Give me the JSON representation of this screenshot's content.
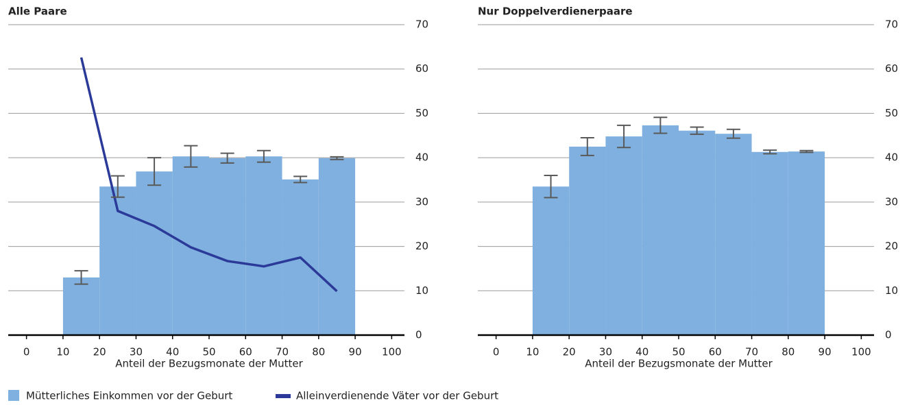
{
  "chart_data": [
    {
      "type": "histogram",
      "title": "Alle Paare",
      "xlabel": "Anteil der Bezugsmonate der Mutter",
      "bins": [
        10,
        20,
        30,
        40,
        50,
        60,
        70,
        80,
        90
      ],
      "series": [
        {
          "name": "Mütterliches Einkommen vor der Geburt",
          "color": "#7fb0df",
          "error_color": "#595959",
          "values": [
            13,
            33.5,
            36.9,
            40.3,
            39.9,
            40.3,
            35.1,
            39.9
          ],
          "errors": [
            1.5,
            2.4,
            3.1,
            2.4,
            1.1,
            1.3,
            0.7,
            0.3
          ]
        },
        {
          "name": "Alleinverdienende Väter vor der Geburt",
          "type": "line",
          "color": "#2b3a98",
          "x": [
            15,
            25,
            35,
            45,
            55,
            65,
            75,
            85
          ],
          "values": [
            62.6,
            28,
            24.6,
            19.8,
            16.7,
            15.5,
            17.5,
            9.9
          ]
        }
      ],
      "xlim": [
        -5,
        105
      ],
      "ylim": [
        0,
        70
      ],
      "xticks": [
        0,
        10,
        20,
        30,
        40,
        50,
        60,
        70,
        80,
        90,
        100
      ],
      "yticks": [
        0,
        10,
        20,
        30,
        40,
        50,
        60,
        70
      ],
      "grid": true,
      "legend": "bottom"
    },
    {
      "type": "histogram",
      "title": "Nur Doppelverdienerpaare",
      "xlabel": "Anteil der Bezugsmonate der Mutter",
      "bins": [
        10,
        20,
        30,
        40,
        50,
        60,
        70,
        80,
        90
      ],
      "series": [
        {
          "color": "#7fb0df",
          "error_color": "#595959",
          "values": [
            33.5,
            42.5,
            44.8,
            47.3,
            46.1,
            45.4,
            41.3,
            41.4
          ],
          "errors": [
            2.5,
            2,
            2.5,
            1.8,
            0.8,
            1,
            0.4,
            0.2
          ]
        }
      ],
      "xlim": [
        -5,
        105
      ],
      "ylim": [
        0,
        70
      ],
      "xticks": [
        0,
        10,
        20,
        30,
        40,
        50,
        60,
        70,
        80,
        90,
        100
      ],
      "yticks": [
        0,
        10,
        20,
        30,
        40,
        50,
        60,
        70
      ],
      "grid": true
    }
  ]
}
